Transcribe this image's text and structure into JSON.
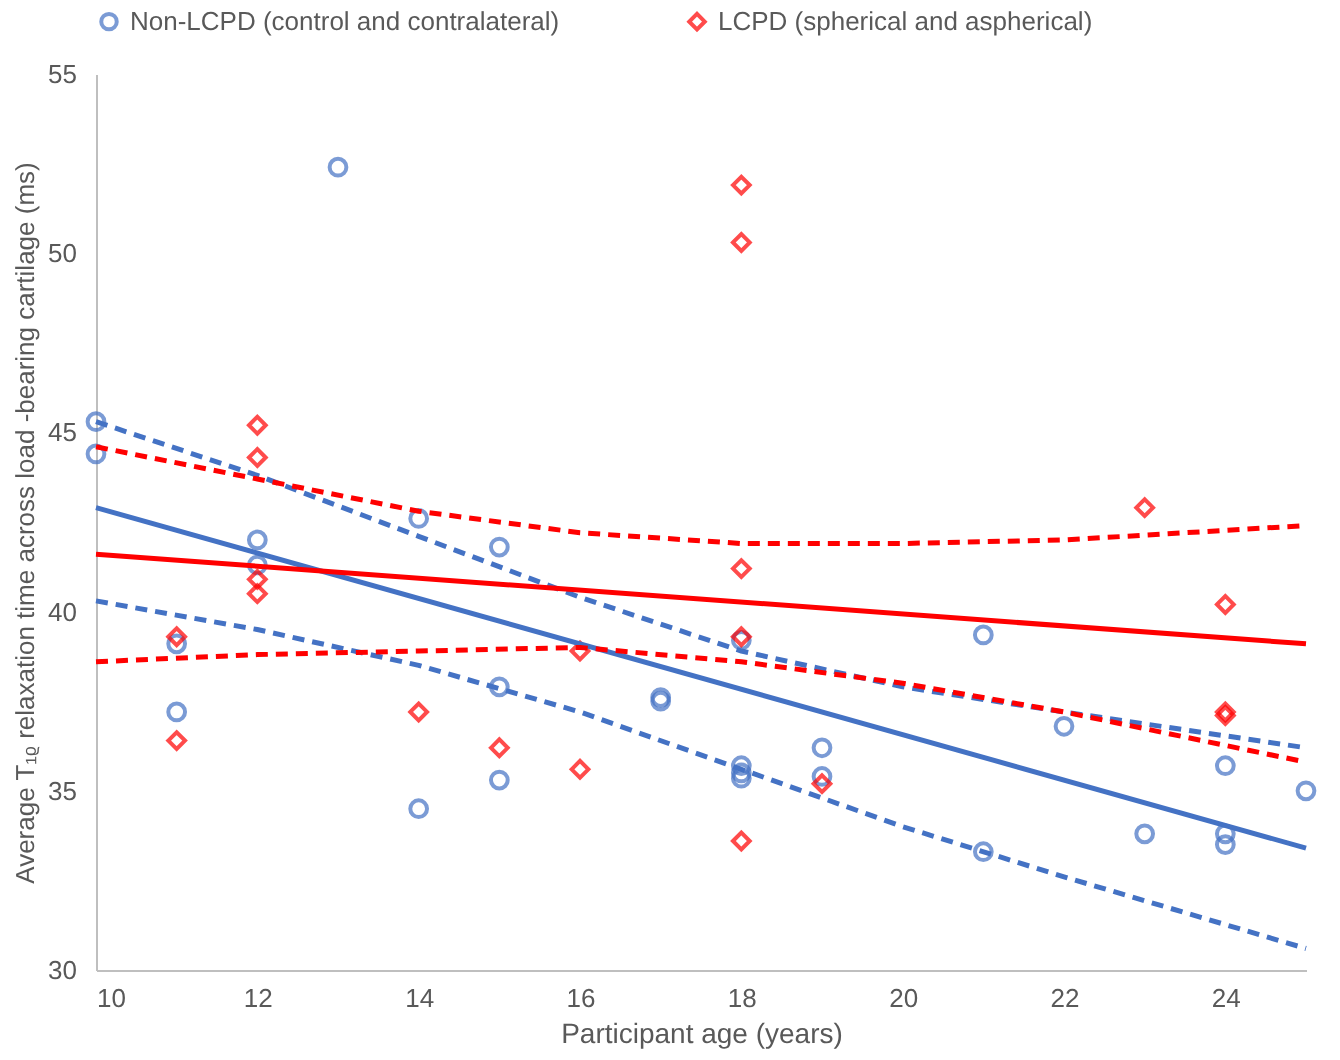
{
  "chart_data": {
    "type": "scatter",
    "xlabel": "Participant age (years)",
    "ylabel": "Average  T₁ᵨ  relaxation time across load -bearing cartilage (ms)",
    "xlim": [
      10,
      25
    ],
    "xticks": [
      10,
      12,
      14,
      16,
      18,
      20,
      22,
      24
    ],
    "ylim": [
      30,
      55
    ],
    "yticks": [
      30,
      35,
      40,
      45,
      50,
      55
    ],
    "grid": false,
    "legend": "top",
    "series": [
      {
        "name": "Non-LCPD (control and contralateral)",
        "marker": "circle",
        "color": "#4472c4",
        "x": [
          10,
          10,
          11,
          11,
          12,
          12,
          13,
          14,
          14,
          15,
          15,
          15,
          17,
          17,
          18,
          18,
          18,
          18,
          19,
          19,
          21,
          21,
          22,
          23,
          24,
          24,
          24,
          25
        ],
        "values": [
          45.3,
          44.4,
          39.1,
          37.2,
          42.0,
          41.3,
          52.4,
          42.6,
          34.5,
          41.8,
          37.9,
          35.3,
          37.6,
          37.5,
          39.2,
          35.7,
          35.5,
          35.35,
          36.2,
          35.4,
          39.35,
          33.3,
          36.8,
          33.8,
          35.7,
          33.8,
          33.5,
          35.0
        ]
      },
      {
        "name": "LCPD (spherical and aspherical)",
        "marker": "diamond",
        "color": "#ff0000",
        "x": [
          11,
          11,
          12,
          12,
          12,
          12,
          14,
          15,
          16,
          16,
          18,
          18,
          18,
          18,
          18,
          19,
          23,
          24,
          24,
          24
        ],
        "values": [
          39.3,
          36.4,
          45.2,
          44.3,
          40.9,
          40.5,
          37.2,
          36.2,
          38.9,
          35.6,
          51.9,
          50.3,
          41.2,
          39.3,
          33.6,
          35.2,
          42.9,
          40.2,
          37.2,
          37.1
        ]
      },
      {
        "type": "line",
        "color": "#4472c4",
        "line_style": "solid",
        "x": [
          10,
          25
        ],
        "values": [
          42.9,
          33.4
        ]
      },
      {
        "type": "line",
        "color": "#4472c4",
        "line_style": "dashed",
        "x": [
          10,
          12,
          14,
          16,
          18,
          20,
          22,
          25
        ],
        "values": [
          45.3,
          43.8,
          42.1,
          40.4,
          38.9,
          37.9,
          37.2,
          36.2
        ]
      },
      {
        "type": "line",
        "color": "#4472c4",
        "line_style": "dashed",
        "x": [
          10,
          12,
          14,
          16,
          18,
          20,
          22,
          25
        ],
        "values": [
          40.3,
          39.5,
          38.5,
          37.2,
          35.6,
          34.0,
          32.6,
          30.6
        ]
      },
      {
        "type": "line",
        "color": "#ff0000",
        "line_style": "solid",
        "x": [
          10,
          25
        ],
        "values": [
          41.6,
          39.1
        ]
      },
      {
        "type": "line",
        "color": "#ff0000",
        "line_style": "dashed",
        "x": [
          10,
          12,
          14,
          16,
          18,
          20,
          22,
          25
        ],
        "values": [
          44.6,
          43.7,
          42.8,
          42.2,
          41.9,
          41.9,
          42.0,
          42.4
        ]
      },
      {
        "type": "line",
        "color": "#ff0000",
        "line_style": "dashed",
        "x": [
          10,
          12,
          14,
          16,
          18,
          20,
          22,
          25
        ],
        "values": [
          38.6,
          38.8,
          38.9,
          39.0,
          38.6,
          38.0,
          37.2,
          35.8
        ]
      }
    ]
  }
}
